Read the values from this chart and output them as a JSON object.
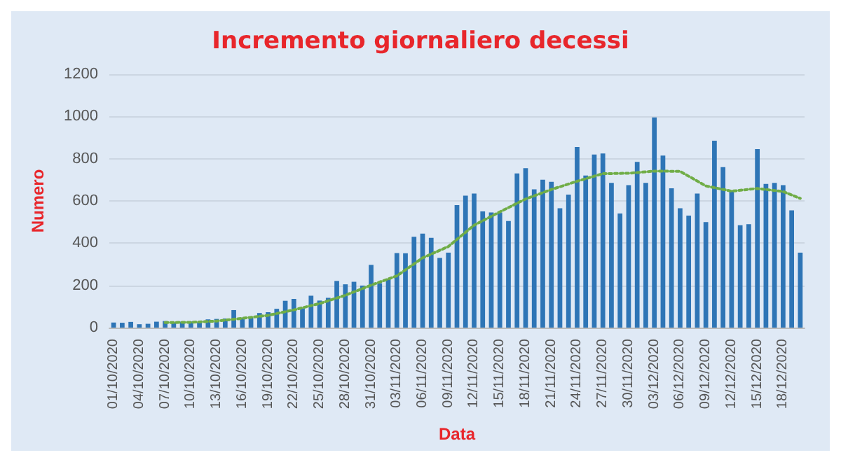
{
  "chart_data": {
    "type": "bar",
    "title": "Incremento giornaliero decessi",
    "xlabel": "Data",
    "ylabel": "Numero",
    "categories": [
      "01/10/2020",
      null,
      null,
      "04/10/2020",
      null,
      null,
      "07/10/2020",
      null,
      null,
      "10/10/2020",
      null,
      null,
      "13/10/2020",
      null,
      null,
      "16/10/2020",
      null,
      null,
      "19/10/2020",
      null,
      null,
      "22/10/2020",
      null,
      null,
      "25/10/2020",
      null,
      null,
      "28/10/2020",
      null,
      null,
      "31/10/2020",
      null,
      null,
      "03/11/2020",
      null,
      null,
      "06/11/2020",
      null,
      null,
      "09/11/2020",
      null,
      null,
      "12/11/2020",
      null,
      null,
      "15/11/2020",
      null,
      null,
      "18/11/2020",
      null,
      null,
      "21/11/2020",
      null,
      null,
      "24/11/2020",
      null,
      null,
      "27/11/2020",
      null,
      null,
      "30/11/2020",
      null,
      null,
      "03/12/2020",
      null,
      null,
      "06/12/2020",
      null,
      null,
      "09/12/2020",
      null,
      null,
      "12/12/2020",
      null,
      null,
      "15/12/2020",
      null,
      null,
      "18/12/2020",
      null,
      null
    ],
    "series": [
      {
        "color": "#2e75b6",
        "values": [
          24,
          23,
          27,
          16,
          18,
          28,
          31,
          22,
          28,
          29,
          26,
          39,
          41,
          43,
          83,
          47,
          47,
          69,
          73,
          89,
          127,
          136,
          91,
          151,
          128,
          141,
          221,
          205,
          217,
          199,
          297,
          210,
          230,
          353,
          352,
          430,
          445,
          425,
          330,
          355,
          580,
          625,
          635,
          550,
          545,
          545,
          505,
          730,
          755,
          655,
          700,
          690,
          565,
          630,
          855,
          720,
          820,
          825,
          685,
          540,
          675,
          785,
          685,
          995,
          815,
          660,
          565,
          530,
          635,
          500,
          885,
          760,
          650,
          485,
          490,
          845,
          680,
          685,
          675,
          555,
          355
        ]
      },
      {
        "type": "line",
        "color": "#70ad47",
        "line_style": "dotted",
        "values": [
          null,
          null,
          null,
          null,
          null,
          null,
          24,
          null,
          null,
          25,
          null,
          null,
          31,
          null,
          null,
          44,
          null,
          null,
          58,
          null,
          null,
          84,
          null,
          null,
          114,
          null,
          null,
          153,
          null,
          null,
          201,
          null,
          null,
          245,
          null,
          null,
          330,
          null,
          null,
          384,
          null,
          null,
          485,
          null,
          null,
          548,
          null,
          null,
          609,
          null,
          null,
          654,
          null,
          null,
          693,
          null,
          null,
          729,
          null,
          null,
          731,
          null,
          null,
          741,
          null,
          null,
          740,
          null,
          null,
          671,
          null,
          null,
          646,
          null,
          null,
          659,
          null,
          null,
          644,
          null,
          612
        ]
      }
    ],
    "ylim": [
      0,
      1200
    ],
    "yticks": [
      0,
      200,
      400,
      600,
      800,
      1000,
      1200
    ],
    "grid": "y"
  }
}
